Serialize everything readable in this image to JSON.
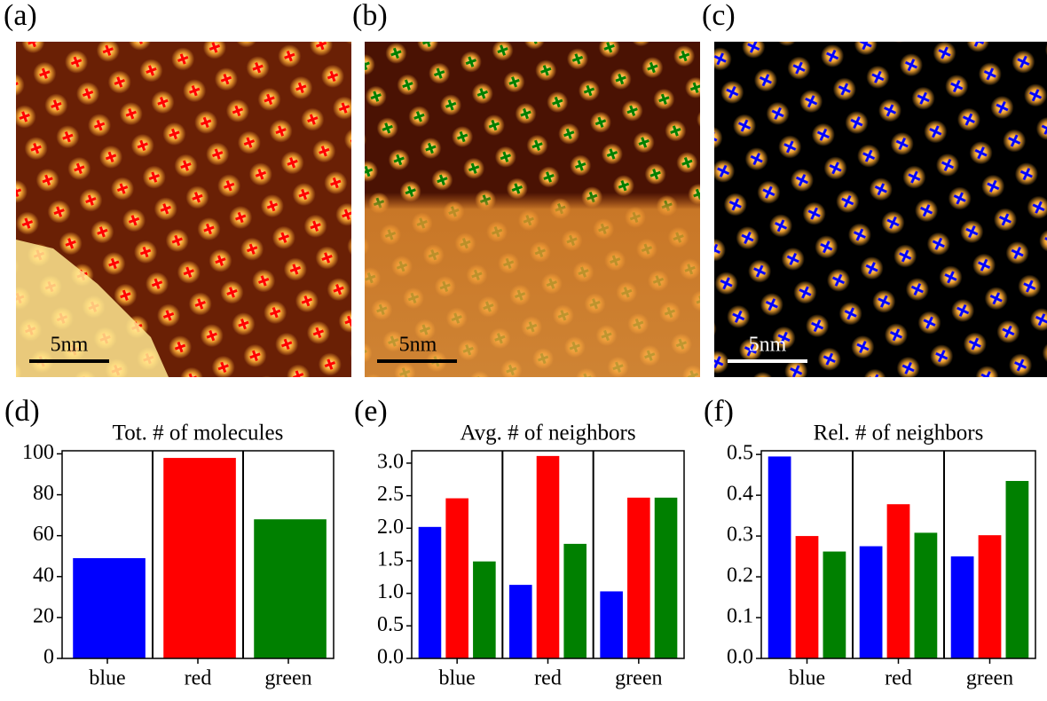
{
  "images": [
    {
      "label": "(a)",
      "scale_bar": "5nm"
    },
    {
      "label": "(b)",
      "scale_bar": "5nm"
    },
    {
      "label": "(c)",
      "scale_bar": "5nm"
    }
  ],
  "chart_data": [
    {
      "type": "bar",
      "label": "(d)",
      "title": "Tot. # of molecules",
      "categories": [
        "blue",
        "red",
        "green"
      ],
      "values": [
        49,
        98,
        68
      ],
      "colors": [
        "#0000ff",
        "#ff0000",
        "#008000"
      ],
      "ylim": [
        0,
        101.5
      ],
      "yticks": [
        0,
        20,
        40,
        60,
        80,
        100
      ]
    },
    {
      "type": "grouped-bar",
      "label": "(e)",
      "title": "Avg. # of neighbors",
      "categories": [
        "blue",
        "red",
        "green"
      ],
      "series": [
        {
          "color": "#0000ff",
          "values": [
            2.02,
            1.13,
            1.03
          ]
        },
        {
          "color": "#ff0000",
          "values": [
            2.46,
            3.11,
            2.47
          ]
        },
        {
          "color": "#008000",
          "values": [
            1.49,
            1.76,
            2.47
          ]
        }
      ],
      "ylim": [
        0,
        3.19
      ],
      "yticks": [
        {
          "value": 0,
          "label": "0.0"
        },
        0.5,
        {
          "value": 1,
          "label": "1.0"
        },
        1.5,
        {
          "value": 2,
          "label": "2.0"
        },
        2.5,
        {
          "value": 3,
          "label": "3.0"
        }
      ]
    },
    {
      "type": "grouped-bar",
      "label": "(f)",
      "title": "Rel. # of neighbors",
      "categories": [
        "blue",
        "red",
        "green"
      ],
      "series": [
        {
          "color": "#0000ff",
          "values": [
            0.495,
            0.275,
            0.25
          ]
        },
        {
          "color": "#ff0000",
          "values": [
            0.3,
            0.378,
            0.302
          ]
        },
        {
          "color": "#008000",
          "values": [
            0.262,
            0.308,
            0.435
          ]
        }
      ],
      "ylim": [
        0,
        0.509
      ],
      "yticks": [
        {
          "value": 0,
          "label": "0.0"
        },
        0.1,
        0.2,
        0.3,
        0.4,
        0.5
      ]
    }
  ]
}
